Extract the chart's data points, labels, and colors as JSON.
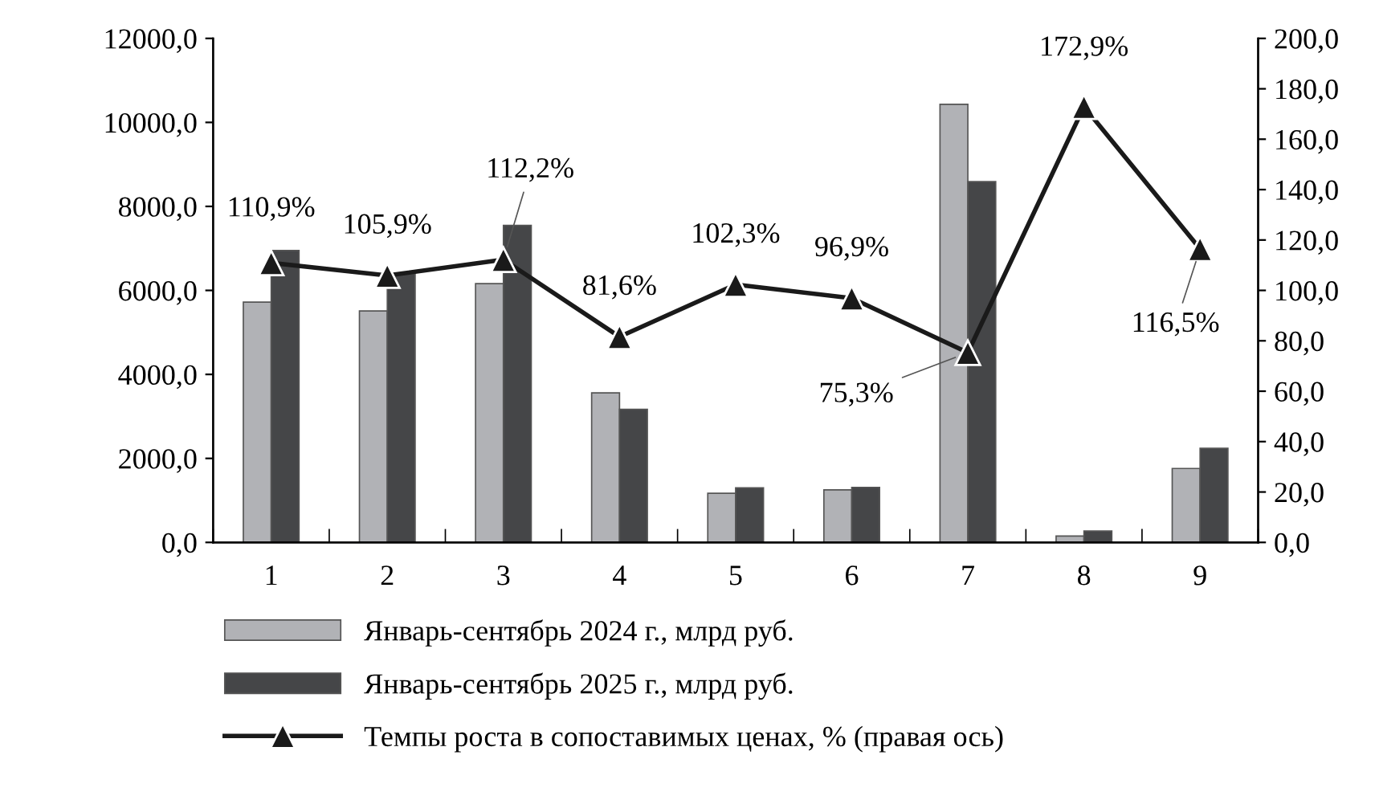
{
  "chart_data": {
    "type": "bar",
    "categories": [
      "1",
      "2",
      "3",
      "4",
      "5",
      "6",
      "7",
      "8",
      "9"
    ],
    "series": [
      {
        "name": "Январь-сентябрь 2024 г., млрд руб.",
        "color": "#b1b2b6",
        "values": [
          5720,
          5510,
          6160,
          3560,
          1170,
          1250,
          10430,
          150,
          1760
        ]
      },
      {
        "name": "Январь-сентябрь 2025 г., млрд руб.",
        "color": "#454648",
        "values": [
          6950,
          6400,
          7550,
          3170,
          1300,
          1310,
          8590,
          270,
          2240
        ]
      },
      {
        "name": "Темпы роста в сопоставимых ценах, % (правая ось)",
        "type": "line",
        "axis": "y2",
        "color": "#1a1a1a",
        "marker": "triangle",
        "values": [
          110.9,
          105.9,
          112.2,
          81.6,
          102.3,
          96.9,
          75.3,
          172.9,
          116.5
        ],
        "value_labels": [
          "110,9%",
          "105,9%",
          "112,2%",
          "81,6%",
          "102,3%",
          "96,9%",
          "75,3%",
          "172,9%",
          "116,5%"
        ]
      }
    ],
    "ylim": [
      0,
      12000
    ],
    "yticks": [
      {
        "value": 0,
        "label": "0,0"
      },
      {
        "value": 2000,
        "label": "2000,0"
      },
      {
        "value": 4000,
        "label": "4000,0"
      },
      {
        "value": 6000,
        "label": "6000,0"
      },
      {
        "value": 8000,
        "label": "8000,0"
      },
      {
        "value": 10000,
        "label": "10000,0"
      },
      {
        "value": 12000,
        "label": "12000,0"
      }
    ],
    "y2lim": [
      0,
      200
    ],
    "y2ticks": [
      {
        "value": 0,
        "label": "0,0"
      },
      {
        "value": 20,
        "label": "20,0"
      },
      {
        "value": 40,
        "label": "40,0"
      },
      {
        "value": 60,
        "label": "60,0"
      },
      {
        "value": 80,
        "label": "80,0"
      },
      {
        "value": 100,
        "label": "100,0"
      },
      {
        "value": 120,
        "label": "120,0"
      },
      {
        "value": 140,
        "label": "140,0"
      },
      {
        "value": 160,
        "label": "160,0"
      },
      {
        "value": 180,
        "label": "180,0"
      },
      {
        "value": 200,
        "label": "200,0"
      }
    ],
    "grid": false,
    "legend": "bottom"
  }
}
